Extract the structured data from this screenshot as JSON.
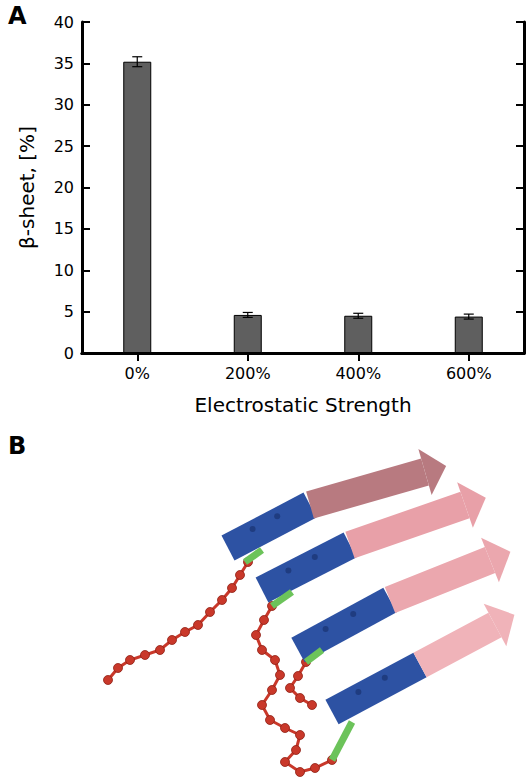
{
  "panel_labels": [
    "A",
    "B"
  ],
  "chart_data": {
    "type": "bar",
    "categories": [
      "0%",
      "200%",
      "400%",
      "600%"
    ],
    "values": [
      35.2,
      4.6,
      4.5,
      4.4
    ],
    "errors": [
      0.6,
      0.3,
      0.3,
      0.3
    ],
    "color": "#5f5f5f",
    "xlabel": "Electrostatic Strength",
    "ylabel": "β-sheet, [%]",
    "ylim": [
      0,
      40
    ],
    "yticks": [
      0,
      5,
      10,
      15,
      20,
      25,
      30,
      35,
      40
    ],
    "grid": false
  }
}
